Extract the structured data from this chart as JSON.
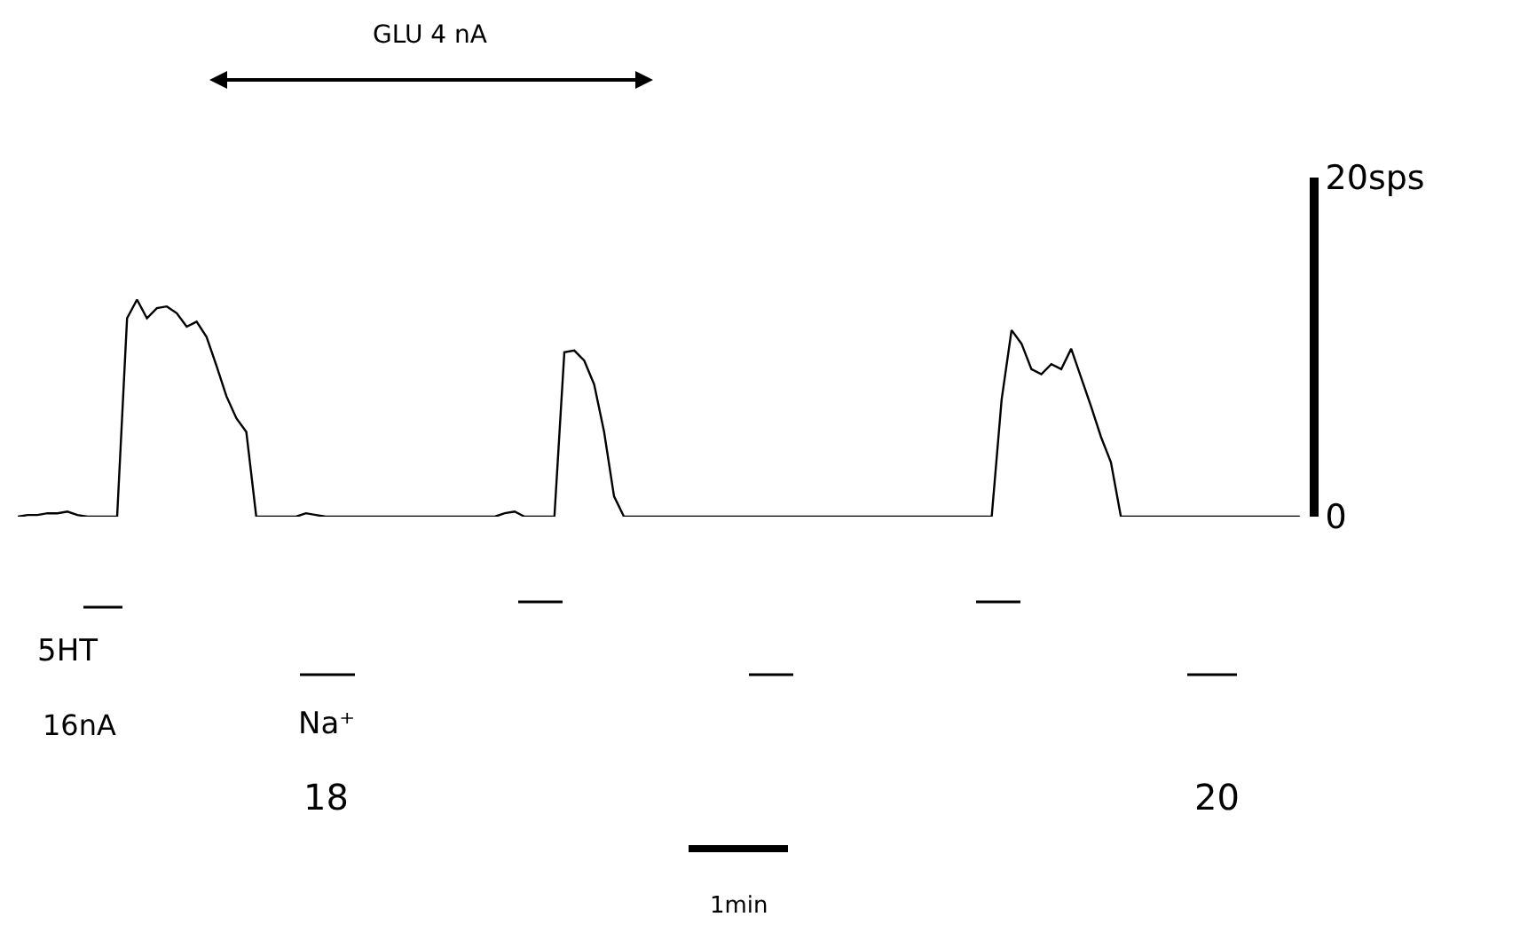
{
  "chart_data": {
    "type": "line",
    "categories": [
      null,
      null,
      null,
      null,
      null,
      null,
      null,
      null,
      null,
      null,
      null,
      null,
      null,
      null,
      null,
      null,
      null,
      null,
      null,
      null,
      null,
      null,
      null,
      null,
      null,
      null,
      null,
      null,
      null,
      null,
      null,
      null,
      null,
      null,
      null,
      null,
      null,
      null,
      null,
      null,
      null,
      null,
      null,
      null,
      null,
      null,
      null,
      null,
      null,
      null,
      null,
      null,
      null,
      null,
      null,
      null,
      null,
      null,
      null,
      null,
      null,
      null,
      null,
      null,
      null,
      null,
      null,
      null,
      null,
      null,
      null,
      null,
      null,
      null,
      null,
      null,
      null,
      null,
      null,
      null,
      null,
      null,
      null,
      null,
      null,
      null,
      null,
      null,
      null,
      null,
      null,
      null,
      null,
      null,
      null,
      null,
      null,
      null,
      null,
      null,
      null,
      null,
      null,
      null,
      null,
      null,
      null,
      null,
      null,
      null,
      null,
      null,
      null,
      null,
      null,
      null,
      null,
      null,
      null,
      null,
      null,
      null,
      null,
      null,
      null,
      null,
      null,
      null,
      null,
      null
    ],
    "series": [
      {
        "color": "#000000",
        "values": [
          0,
          0.1,
          0.1,
          0.2,
          0.2,
          0.3,
          0.1,
          0,
          0,
          0,
          0,
          11.7,
          12.8,
          11.7,
          12.3,
          12.4,
          12,
          11.2,
          11.5,
          10.6,
          8.9,
          7.1,
          5.8,
          5,
          0,
          0,
          0,
          0,
          0,
          0.2,
          0.1,
          0,
          0,
          0,
          0,
          0,
          0,
          0,
          0,
          0,
          0,
          0,
          0,
          0,
          0,
          0,
          0,
          0,
          0,
          0.2,
          0.3,
          0,
          0,
          0,
          0,
          9.7,
          9.8,
          9.2,
          7.8,
          5,
          1.2,
          0,
          0,
          0,
          0,
          0,
          0,
          0,
          0,
          0,
          0,
          0,
          0,
          0,
          0,
          0,
          0,
          0,
          0,
          0,
          0,
          0,
          0,
          0,
          0,
          0,
          0,
          0,
          0,
          0,
          0,
          0,
          0,
          0,
          0,
          0,
          0,
          0,
          0,
          6.9,
          11,
          10.2,
          8.7,
          8.4,
          9,
          8.7,
          9.9,
          8.2,
          6.5,
          4.7,
          3.2,
          0,
          0,
          0,
          0,
          0,
          0,
          0,
          0,
          0,
          0,
          0,
          0,
          0,
          0,
          0,
          0,
          0,
          0,
          0
        ]
      }
    ],
    "ylim": [
      0,
      20
    ],
    "yticks": [
      0,
      {
        "value": 20,
        "label": "20sps"
      }
    ],
    "tick_labels": "y",
    "marker": "none",
    "line_style": "solid",
    "annotations": [
      "GLU 4 nA",
      "5HT",
      "16nA",
      "Na⁺",
      "18",
      "20",
      "1min"
    ]
  }
}
